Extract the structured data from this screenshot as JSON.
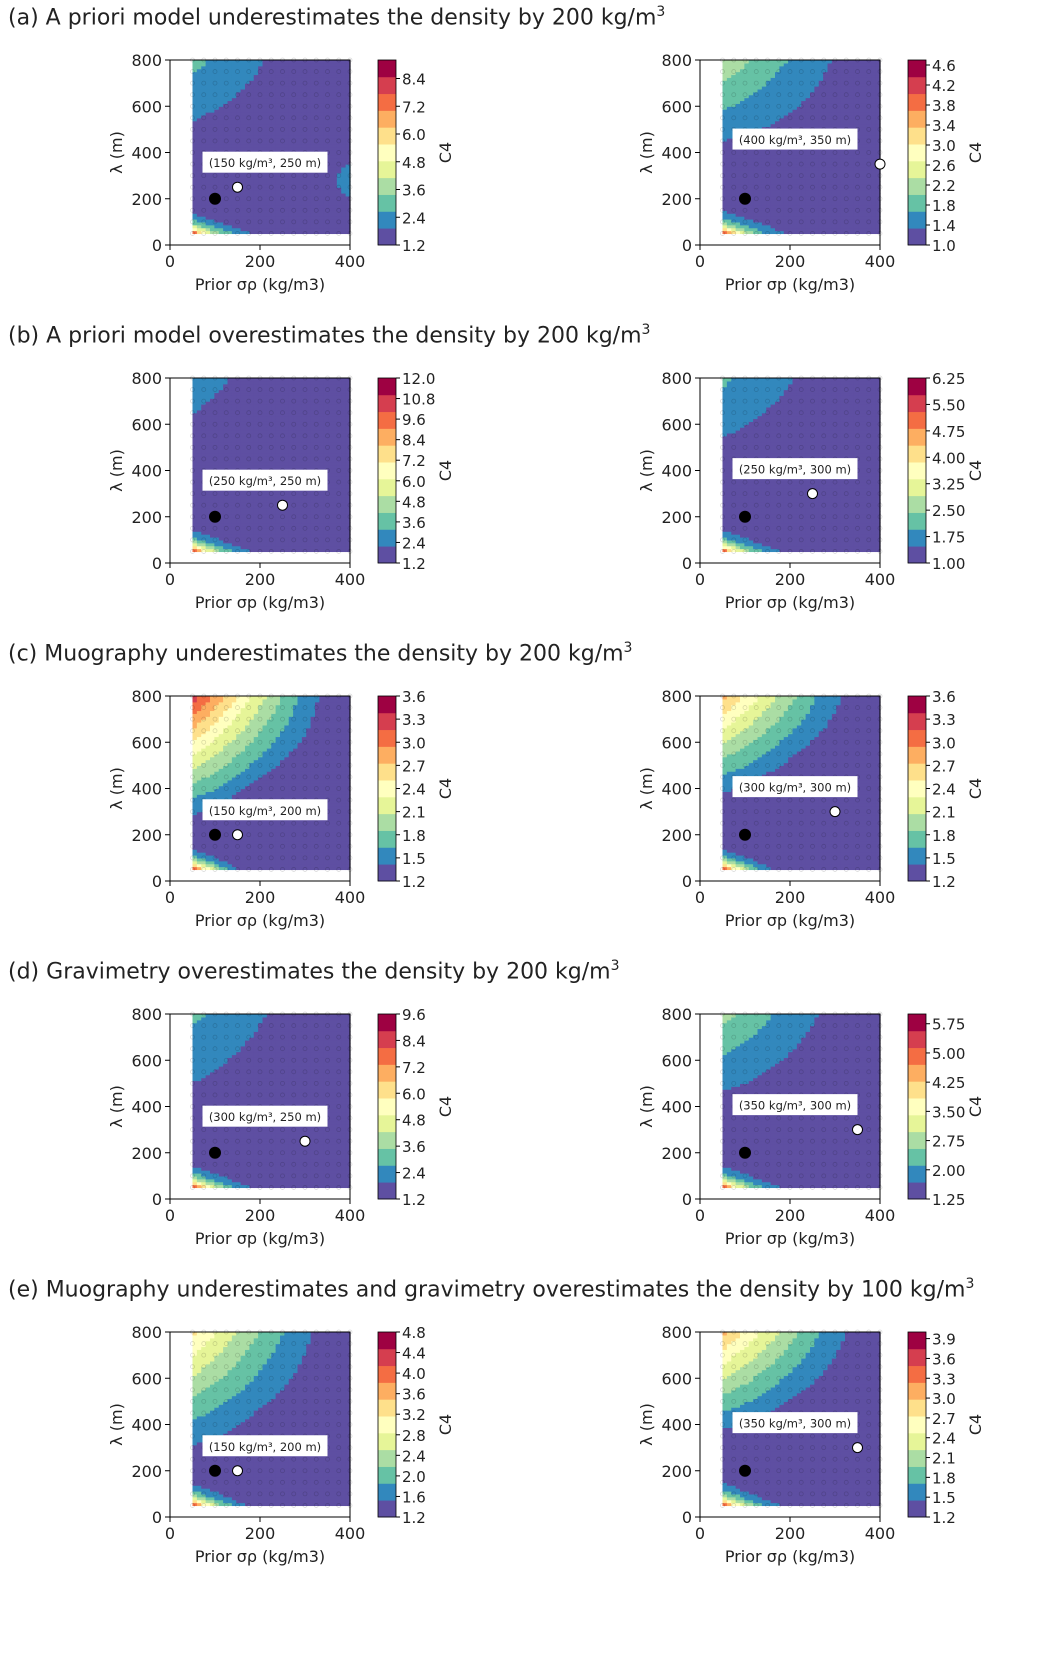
{
  "colors": {
    "spectral_r": [
      "#5e4fa2",
      "#3288bd",
      "#66c2a5",
      "#abdda4",
      "#e6f598",
      "#ffffbf",
      "#fee08b",
      "#fdae61",
      "#f46d43",
      "#d53e4f",
      "#9e0142"
    ],
    "white_marker": "#ffffff",
    "black_marker": "#000000"
  },
  "rows": [
    {
      "label": "(a)",
      "title": "A priori model underestimates the density by 200 kg/m",
      "title_sup": "3"
    },
    {
      "label": "(b)",
      "title": "A priori model overestimates the density by 200 kg/m",
      "title_sup": "3"
    },
    {
      "label": "(c)",
      "title": "Muography underestimates the density by 200 kg/m",
      "title_sup": "3"
    },
    {
      "label": "(d)",
      "title": "Gravimetry overestimates the density by 200 kg/m",
      "title_sup": "3"
    },
    {
      "label": "(e)",
      "title": "Muography underestimates and gravimetry overestimates the density by 100 kg/m",
      "title_sup": "3"
    }
  ],
  "chart_data": [
    {
      "type": "heatmap",
      "row": 0,
      "col": 0,
      "xlabel": "Prior σρ (kg/m3)",
      "ylabel": "λ (m)",
      "cbar_label": "C4",
      "xlim": [
        0,
        400
      ],
      "ylim": [
        0,
        800
      ],
      "xticks": [
        0,
        200,
        400
      ],
      "yticks": [
        0,
        200,
        400,
        600,
        800
      ],
      "cbar_ticks": [
        "1.2",
        "2.4",
        "3.6",
        "4.8",
        "6.0",
        "7.2",
        "8.4"
      ],
      "cbar_range": [
        1.2,
        9.2
      ],
      "best_point": [
        150,
        250
      ],
      "best_label": "(150 kg/m³, 250 m)",
      "reference_point": [
        100,
        200
      ],
      "field": {
        "c0": 1.2,
        "bottom_rise": 7.5,
        "top_rise": 1.7,
        "valley": 280,
        "sig_rise": 0.8
      }
    },
    {
      "type": "heatmap",
      "row": 0,
      "col": 1,
      "xlabel": "Prior σp (kg/m3)",
      "ylabel": "λ (m)",
      "cbar_label": "C4",
      "xlim": [
        0,
        400
      ],
      "ylim": [
        0,
        800
      ],
      "xticks": [
        0,
        200,
        400
      ],
      "yticks": [
        0,
        200,
        400,
        600,
        800
      ],
      "cbar_ticks": [
        "1.0",
        "1.4",
        "1.8",
        "2.2",
        "2.6",
        "3.0",
        "3.4",
        "3.8",
        "4.2",
        "4.6"
      ],
      "cbar_range": [
        1.0,
        4.7
      ],
      "best_point": [
        400,
        350
      ],
      "best_label": "(400 kg/m³, 350 m)",
      "reference_point": [
        100,
        200
      ],
      "field": {
        "c0": 1.1,
        "bottom_rise": 3.6,
        "top_rise": 1.2,
        "valley": 330,
        "sig_rise": -0.1
      }
    },
    {
      "type": "heatmap",
      "row": 1,
      "col": 0,
      "xlabel": "Prior σp (kg/m3)",
      "ylabel": "λ (m)",
      "cbar_label": "C4",
      "xlim": [
        0,
        400
      ],
      "ylim": [
        0,
        800
      ],
      "xticks": [
        0,
        200,
        400
      ],
      "yticks": [
        0,
        200,
        400,
        600,
        800
      ],
      "cbar_ticks": [
        "1.2",
        "2.4",
        "3.6",
        "4.8",
        "6.0",
        "7.2",
        "8.4",
        "9.6",
        "10.8",
        "12.0"
      ],
      "cbar_range": [
        1.2,
        12.0
      ],
      "best_point": [
        250,
        250
      ],
      "best_label": "(250 kg/m³, 250 m)",
      "reference_point": [
        100,
        200
      ],
      "field": {
        "c0": 1.3,
        "bottom_rise": 10.5,
        "top_rise": 1.3,
        "valley": 250,
        "sig_rise": -0.2
      }
    },
    {
      "type": "heatmap",
      "row": 1,
      "col": 1,
      "xlabel": "Prior σp (kg/m3)",
      "ylabel": "λ (m)",
      "cbar_label": "C4",
      "xlim": [
        0,
        400
      ],
      "ylim": [
        0,
        800
      ],
      "xticks": [
        0,
        200,
        400
      ],
      "yticks": [
        0,
        200,
        400,
        600,
        800
      ],
      "cbar_ticks": [
        "1.00",
        "1.75",
        "2.50",
        "3.25",
        "4.00",
        "4.75",
        "5.50",
        "6.25"
      ],
      "cbar_range": [
        1.0,
        6.25
      ],
      "best_point": [
        250,
        300
      ],
      "best_label": "(250 kg/m³, 300 m)",
      "reference_point": [
        100,
        200
      ],
      "field": {
        "c0": 1.05,
        "bottom_rise": 5.0,
        "top_rise": 1.0,
        "valley": 300,
        "sig_rise": -0.1
      }
    },
    {
      "type": "heatmap",
      "row": 2,
      "col": 0,
      "xlabel": "Prior σρ (kg/m3)",
      "ylabel": "λ (m)",
      "cbar_label": "C4",
      "xlim": [
        0,
        400
      ],
      "ylim": [
        0,
        800
      ],
      "xticks": [
        0,
        200,
        400
      ],
      "yticks": [
        0,
        200,
        400,
        600,
        800
      ],
      "cbar_ticks": [
        "1.2",
        "1.5",
        "1.8",
        "2.1",
        "2.4",
        "2.7",
        "3.0",
        "3.3",
        "3.6"
      ],
      "cbar_range": [
        1.2,
        3.6
      ],
      "best_point": [
        150,
        200
      ],
      "best_label": "(150 kg/m³, 200 m)",
      "reference_point": [
        100,
        200
      ],
      "field": {
        "c0": 1.2,
        "bottom_rise": 2.4,
        "top_rise": 2.1,
        "valley": 200,
        "sig_rise": -0.9
      }
    },
    {
      "type": "heatmap",
      "row": 2,
      "col": 1,
      "xlabel": "Prior σp (kg/m3)",
      "ylabel": "λ (m)",
      "cbar_label": "C4",
      "xlim": [
        0,
        400
      ],
      "ylim": [
        0,
        800
      ],
      "xticks": [
        0,
        200,
        400
      ],
      "yticks": [
        0,
        200,
        400,
        600,
        800
      ],
      "cbar_ticks": [
        "1.2",
        "1.5",
        "1.8",
        "2.1",
        "2.4",
        "2.7",
        "3.0",
        "3.3",
        "3.6"
      ],
      "cbar_range": [
        1.2,
        3.6
      ],
      "best_point": [
        300,
        300
      ],
      "best_label": "(300 kg/m³, 300 m)",
      "reference_point": [
        100,
        200
      ],
      "field": {
        "c0": 1.2,
        "bottom_rise": 2.4,
        "top_rise": 1.6,
        "valley": 290,
        "sig_rise": -0.6
      }
    },
    {
      "type": "heatmap",
      "row": 3,
      "col": 0,
      "xlabel": "Prior σp (kg/m3)",
      "ylabel": "λ (m)",
      "cbar_label": "C4",
      "xlim": [
        0,
        400
      ],
      "ylim": [
        0,
        800
      ],
      "xticks": [
        0,
        200,
        400
      ],
      "yticks": [
        0,
        200,
        400,
        600,
        800
      ],
      "cbar_ticks": [
        "1.2",
        "2.4",
        "3.6",
        "4.8",
        "6.0",
        "7.2",
        "8.4",
        "9.6"
      ],
      "cbar_range": [
        1.2,
        9.6
      ],
      "best_point": [
        300,
        250
      ],
      "best_label": "(300 kg/m³, 250 m)",
      "reference_point": [
        100,
        200
      ],
      "field": {
        "c0": 1.3,
        "bottom_rise": 8.3,
        "top_rise": 1.6,
        "valley": 230,
        "sig_rise": -0.3
      }
    },
    {
      "type": "heatmap",
      "row": 3,
      "col": 1,
      "xlabel": "Prior σp (kg/m3)",
      "ylabel": "λ (m)",
      "cbar_label": "C4",
      "xlim": [
        0,
        400
      ],
      "ylim": [
        0,
        800
      ],
      "xticks": [
        0,
        200,
        400
      ],
      "yticks": [
        0,
        200,
        400,
        600,
        800
      ],
      "cbar_ticks": [
        "1.25",
        "2.00",
        "2.75",
        "3.50",
        "4.25",
        "5.00",
        "5.75"
      ],
      "cbar_range": [
        1.25,
        6.0
      ],
      "best_point": [
        350,
        300
      ],
      "best_label": "(350 kg/m³, 300 m)",
      "reference_point": [
        100,
        200
      ],
      "field": {
        "c0": 1.3,
        "bottom_rise": 4.6,
        "top_rise": 1.4,
        "valley": 300,
        "sig_rise": -0.2
      }
    },
    {
      "type": "heatmap",
      "row": 4,
      "col": 0,
      "xlabel": "Prior σρ (kg/m3)",
      "ylabel": "λ (m)",
      "cbar_label": "C4",
      "xlim": [
        0,
        400
      ],
      "ylim": [
        0,
        800
      ],
      "xticks": [
        0,
        200,
        400
      ],
      "yticks": [
        0,
        200,
        400,
        600,
        800
      ],
      "cbar_ticks": [
        "1.2",
        "1.6",
        "2.0",
        "2.4",
        "2.8",
        "3.2",
        "3.6",
        "4.0",
        "4.4",
        "4.8"
      ],
      "cbar_range": [
        1.2,
        4.8
      ],
      "best_point": [
        150,
        200
      ],
      "best_label": "(150 kg/m³, 200 m)",
      "reference_point": [
        100,
        200
      ],
      "field": {
        "c0": 1.25,
        "bottom_rise": 3.5,
        "top_rise": 2.0,
        "valley": 200,
        "sig_rise": -0.7
      }
    },
    {
      "type": "heatmap",
      "row": 4,
      "col": 1,
      "xlabel": "Prior σρ (kg/m3)",
      "ylabel": "λ (m)",
      "cbar_label": "C4",
      "xlim": [
        0,
        400
      ],
      "ylim": [
        0,
        800
      ],
      "xticks": [
        0,
        200,
        400
      ],
      "yticks": [
        0,
        200,
        400,
        600,
        800
      ],
      "cbar_ticks": [
        "1.2",
        "1.5",
        "1.8",
        "2.1",
        "2.4",
        "2.7",
        "3.0",
        "3.3",
        "3.6",
        "3.9"
      ],
      "cbar_range": [
        1.2,
        4.0
      ],
      "best_point": [
        350,
        300
      ],
      "best_label": "(350 kg/m³, 300 m)",
      "reference_point": [
        100,
        200
      ],
      "field": {
        "c0": 1.25,
        "bottom_rise": 2.7,
        "top_rise": 1.8,
        "valley": 300,
        "sig_rise": -0.5
      }
    }
  ]
}
